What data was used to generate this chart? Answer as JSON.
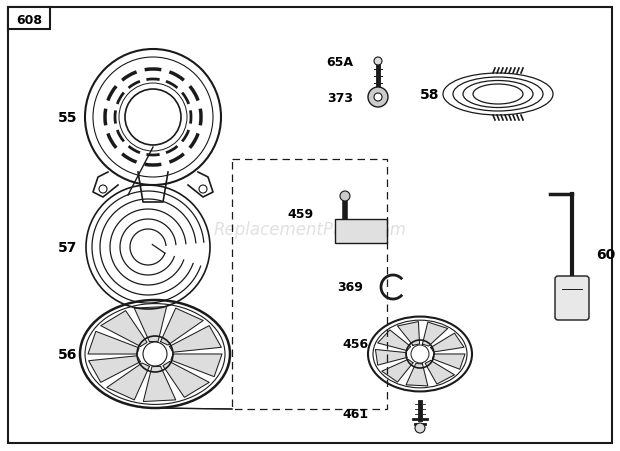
{
  "title": "608",
  "background_color": "#ffffff",
  "border_color": "#1a1a1a",
  "line_color": "#1a1a1a",
  "text_color": "#000000",
  "watermark": "ReplacementParts.com",
  "watermark_color": "#c8c8c8",
  "fig_w": 6.2,
  "fig_h": 4.52,
  "dpi": 100
}
